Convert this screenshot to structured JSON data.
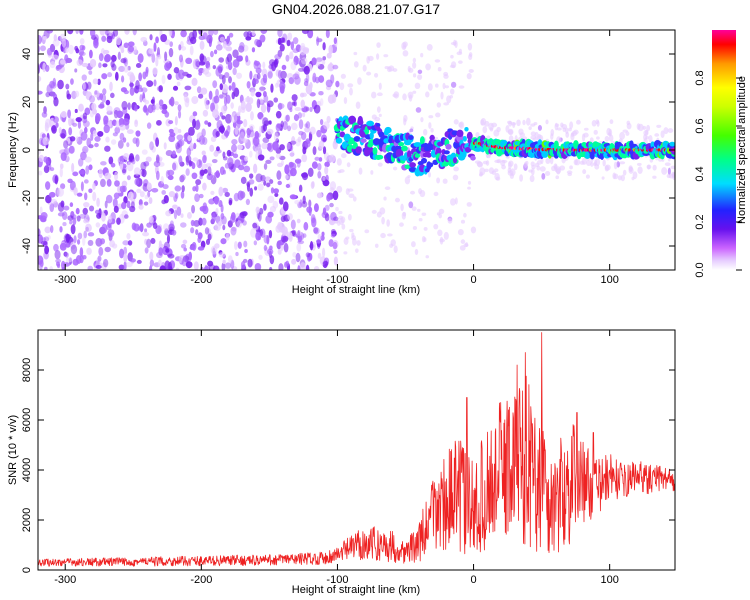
{
  "title": "GN04.2026.088.21.07.G17",
  "colors": {
    "snr_line": "#ee2222",
    "spectrogram_base": "#6a1fe8",
    "colormap": [
      "#ffffff",
      "#e6ccff",
      "#aa66ff",
      "#7a22ee",
      "#3333ff",
      "#00ccff",
      "#00ff99",
      "#66ff00",
      "#ffff00",
      "#ff9900",
      "#ff0000",
      "#ff0099"
    ]
  },
  "chart_data": [
    {
      "type": "heatmap",
      "name": "spectrogram",
      "xlabel": "Height of straight line (km)",
      "ylabel": "Frequency (Hz)",
      "xlim": [
        -320,
        148
      ],
      "ylim": [
        -50,
        50
      ],
      "xticks": [
        -300,
        -200,
        -100,
        0,
        100
      ],
      "yticks": [
        -40,
        -20,
        0,
        20,
        40
      ],
      "ridge": {
        "start_km": -100,
        "end_km": 148,
        "center_hz_profile": [
          [
            -100,
            8
          ],
          [
            -80,
            5
          ],
          [
            -60,
            2
          ],
          [
            -40,
            -3
          ],
          [
            -20,
            1
          ],
          [
            0,
            3
          ],
          [
            20,
            1
          ],
          [
            60,
            0
          ],
          [
            148,
            0
          ]
        ],
        "bright_core_from_km": 0
      },
      "scatter_region": {
        "from_km": -320,
        "to_km": -100,
        "amplitude": "low"
      },
      "colorbar": {
        "label": "Normalized spectral amplitude",
        "range": [
          0.0,
          1.0
        ],
        "ticks": [
          "0.0",
          "0.2",
          "0.4",
          "0.6",
          "0.8"
        ]
      }
    },
    {
      "type": "line",
      "name": "snr",
      "xlabel": "Height of straight line (km)",
      "ylabel": "SNR (10 * v/v)",
      "xlim": [
        -320,
        148
      ],
      "ylim": [
        0,
        9600
      ],
      "xticks": [
        -300,
        -200,
        -100,
        0,
        100
      ],
      "yticks": [
        0,
        2000,
        4000,
        6000,
        8000
      ],
      "envelope": {
        "x": [
          -320,
          -250,
          -150,
          -110,
          -100,
          -90,
          -80,
          -60,
          -50,
          -40,
          -30,
          -20,
          -10,
          0,
          10,
          20,
          30,
          38,
          45,
          50,
          55,
          60,
          70,
          75,
          80,
          90,
          100,
          110,
          120,
          130,
          140,
          148
        ],
        "mean": [
          300,
          330,
          400,
          480,
          620,
          900,
          1100,
          950,
          700,
          1100,
          2200,
          2800,
          3000,
          2400,
          3300,
          4000,
          4300,
          4600,
          3600,
          3900,
          2400,
          2800,
          3300,
          3900,
          3600,
          3200,
          3800,
          3500,
          3800,
          3600,
          3700,
          3600
        ],
        "amplitude": [
          150,
          180,
          220,
          260,
          350,
          500,
          700,
          650,
          450,
          800,
          1600,
          2000,
          2400,
          2000,
          2400,
          2800,
          3200,
          3600,
          3000,
          3200,
          2200,
          2400,
          2400,
          2000,
          1700,
          1200,
          900,
          700,
          600,
          600,
          500,
          500
        ]
      },
      "peaks": [
        [
          -5,
          6900
        ],
        [
          20,
          6700
        ],
        [
          32,
          8200
        ],
        [
          38,
          8700
        ],
        [
          50,
          9500
        ],
        [
          76,
          6300
        ],
        [
          88,
          5500
        ]
      ]
    }
  ]
}
